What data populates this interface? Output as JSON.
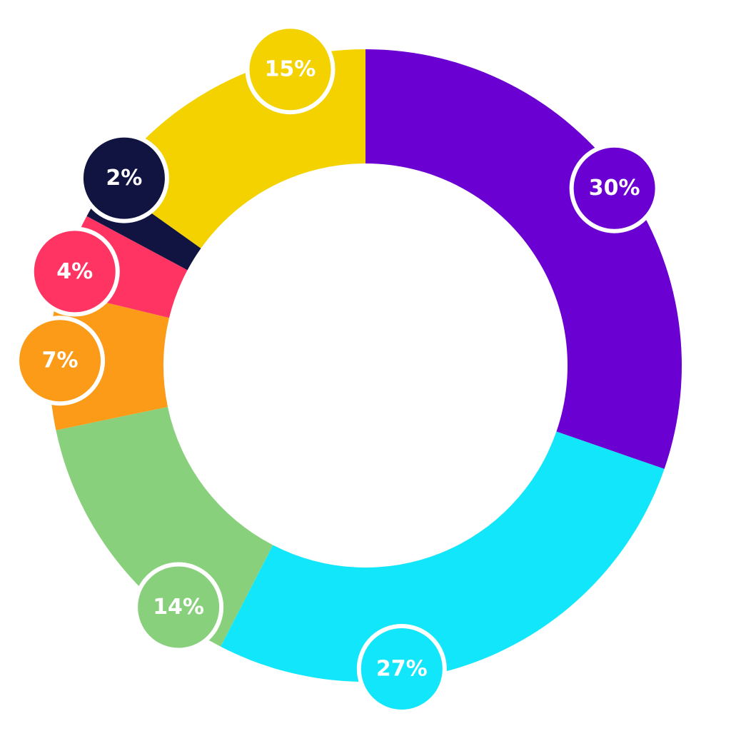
{
  "chart_data": {
    "type": "pie",
    "variant": "donut",
    "values": [
      30,
      27,
      14,
      7,
      4,
      2,
      15
    ],
    "labels": [
      "30%",
      "27%",
      "14%",
      "7%",
      "4%",
      "2%",
      "15%"
    ],
    "colors": [
      "#6a00d1",
      "#12e6fb",
      "#89d07d",
      "#fb9b18",
      "#ff3463",
      "#111441",
      "#f3d200"
    ],
    "start_angle_deg": 0,
    "direction": "clockwise",
    "legend": "none",
    "title": ""
  }
}
